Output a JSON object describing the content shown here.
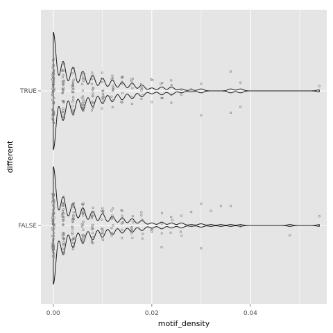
{
  "chart_data": {
    "type": "violin+jitter",
    "xlabel": "motif_density",
    "ylabel": "different",
    "xlim": [
      -0.0025,
      0.0555
    ],
    "x_ticks": [
      {
        "value": 0.0,
        "label": "0.00"
      },
      {
        "value": 0.02,
        "label": "0.02"
      },
      {
        "value": 0.04,
        "label": "0.04"
      }
    ],
    "categories": [
      "FALSE",
      "TRUE"
    ],
    "grid": true,
    "background": "#e5e5e5",
    "grid_color": "#ffffff",
    "point_color": "#808080",
    "line_color": "#1a1a1a",
    "series": [
      {
        "name": "TRUE",
        "columns": [
          {
            "x": 0.0,
            "count": 60
          },
          {
            "x": 0.002,
            "count": 30
          },
          {
            "x": 0.004,
            "count": 24
          },
          {
            "x": 0.006,
            "count": 20
          },
          {
            "x": 0.008,
            "count": 16
          },
          {
            "x": 0.01,
            "count": 13
          },
          {
            "x": 0.012,
            "count": 11
          },
          {
            "x": 0.014,
            "count": 9
          },
          {
            "x": 0.016,
            "count": 8
          },
          {
            "x": 0.018,
            "count": 6
          },
          {
            "x": 0.02,
            "count": 3
          },
          {
            "x": 0.022,
            "count": 3
          },
          {
            "x": 0.024,
            "count": 3
          },
          {
            "x": 0.026,
            "count": 2
          }
        ],
        "extra_points": [
          {
            "x": 0.022,
            "jitter": 0.15
          },
          {
            "x": 0.024,
            "jitter": -0.12
          },
          {
            "x": 0.028,
            "jitter": -0.03
          },
          {
            "x": 0.03,
            "jitter": 0.5
          },
          {
            "x": 0.03,
            "jitter": -0.15
          },
          {
            "x": 0.036,
            "jitter": 0.45
          },
          {
            "x": 0.036,
            "jitter": -0.4
          },
          {
            "x": 0.038,
            "jitter": 0.33
          },
          {
            "x": 0.038,
            "jitter": -0.17
          },
          {
            "x": 0.054,
            "jitter": -0.1
          }
        ]
      },
      {
        "name": "FALSE",
        "columns": [
          {
            "x": 0.0,
            "count": 70
          },
          {
            "x": 0.002,
            "count": 34
          },
          {
            "x": 0.004,
            "count": 26
          },
          {
            "x": 0.006,
            "count": 21
          },
          {
            "x": 0.008,
            "count": 17
          },
          {
            "x": 0.01,
            "count": 14
          },
          {
            "x": 0.012,
            "count": 11
          },
          {
            "x": 0.014,
            "count": 9
          },
          {
            "x": 0.016,
            "count": 8
          },
          {
            "x": 0.018,
            "count": 6
          },
          {
            "x": 0.02,
            "count": 3
          },
          {
            "x": 0.022,
            "count": 3
          },
          {
            "x": 0.024,
            "count": 3
          },
          {
            "x": 0.026,
            "count": 2
          }
        ],
        "extra_points": [
          {
            "x": 0.022,
            "jitter": 0.45
          },
          {
            "x": 0.026,
            "jitter": -0.2
          },
          {
            "x": 0.028,
            "jitter": -0.28
          },
          {
            "x": 0.03,
            "jitter": 0.47
          },
          {
            "x": 0.03,
            "jitter": -0.45
          },
          {
            "x": 0.032,
            "jitter": -0.3
          },
          {
            "x": 0.034,
            "jitter": -0.4
          },
          {
            "x": 0.036,
            "jitter": -0.4
          },
          {
            "x": 0.038,
            "jitter": 0.02
          },
          {
            "x": 0.048,
            "jitter": 0.2
          },
          {
            "x": 0.054,
            "jitter": -0.19
          }
        ]
      }
    ]
  }
}
